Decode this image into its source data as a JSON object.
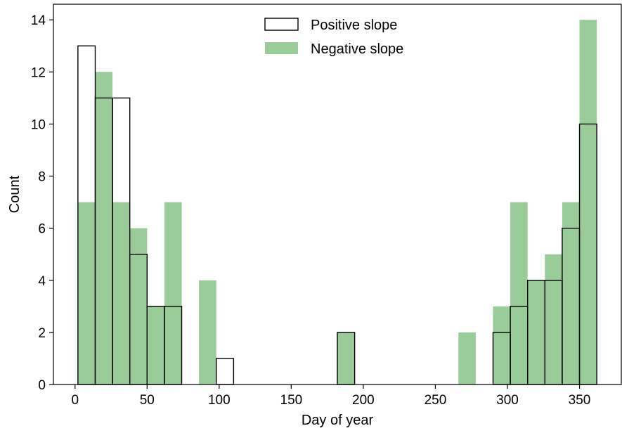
{
  "chart_data": {
    "type": "bar",
    "subtype": "histogram",
    "xlabel": "Day of year",
    "ylabel": "Count",
    "xlim": [
      -15,
      379
    ],
    "ylim": [
      0,
      14.6
    ],
    "xticks": [
      0,
      50,
      100,
      150,
      200,
      250,
      300,
      350
    ],
    "yticks": [
      0,
      2,
      4,
      6,
      8,
      10,
      12,
      14
    ],
    "grid": false,
    "legend_position": "top-center",
    "bin_width": 12,
    "bin_starts": [
      2,
      14,
      26,
      38,
      50,
      62,
      74,
      86,
      98,
      110,
      122,
      134,
      146,
      158,
      170,
      182,
      194,
      206,
      218,
      230,
      242,
      254,
      266,
      278,
      290,
      302,
      314,
      326,
      338,
      350
    ],
    "series": [
      {
        "name": "Negative slope",
        "style": "filled",
        "color": "#99cc99",
        "values": [
          7,
          12,
          7,
          6,
          3,
          7,
          0,
          4,
          0,
          0,
          0,
          0,
          0,
          0,
          0,
          2,
          0,
          0,
          0,
          0,
          0,
          0,
          2,
          0,
          3,
          7,
          4,
          5,
          7,
          14
        ]
      },
      {
        "name": "Positive slope",
        "style": "outline",
        "color": "#000000",
        "values": [
          13,
          11,
          11,
          5,
          3,
          3,
          0,
          0,
          1,
          0,
          0,
          0,
          0,
          0,
          0,
          2,
          0,
          0,
          0,
          0,
          0,
          0,
          0,
          0,
          2,
          3,
          4,
          4,
          6,
          10
        ]
      }
    ]
  }
}
